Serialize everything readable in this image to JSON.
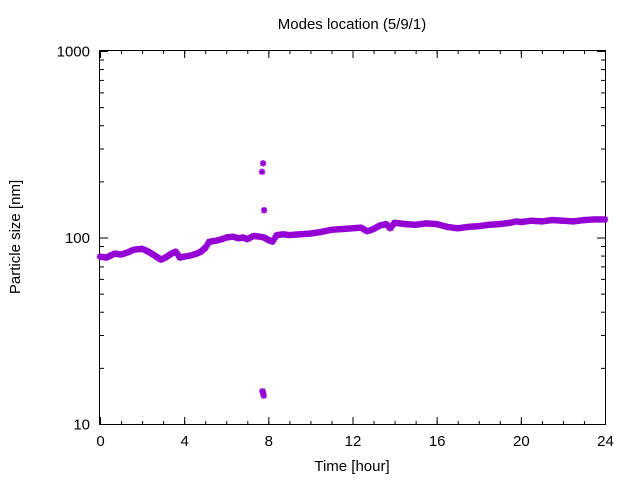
{
  "chart_data": {
    "type": "scatter",
    "title": "Modes location (5/9/1)",
    "xlabel": "Time [hour]",
    "ylabel": "Particle size [nm]",
    "xlim": [
      0,
      24
    ],
    "ylim": [
      10,
      1000
    ],
    "yscale": "log",
    "x_ticks": [
      0,
      4,
      8,
      12,
      16,
      20,
      24
    ],
    "x_tick_labels": [
      "0",
      "4",
      "8",
      "12",
      "16",
      "20",
      "24"
    ],
    "y_ticks": [
      10,
      100,
      1000
    ],
    "y_tick_labels": [
      "10",
      "100",
      "1000"
    ],
    "grid": false,
    "legend": "none",
    "marker_color": "#9400d3",
    "marker": "star",
    "trend_series": {
      "x": [
        0,
        0.3,
        0.5,
        0.7,
        1.0,
        1.3,
        1.6,
        2.0,
        2.3,
        2.6,
        2.9,
        3.1,
        3.4,
        3.6,
        3.8,
        4.0,
        4.3,
        4.6,
        4.8,
        5.0,
        5.2,
        5.5,
        5.8,
        6.0,
        6.3,
        6.6,
        6.8,
        7.0,
        7.3,
        7.6,
        7.8,
        8.0,
        8.2,
        8.4,
        8.7,
        9.0,
        9.5,
        10.0,
        10.5,
        11.0,
        11.5,
        12.0,
        12.4,
        12.7,
        13.0,
        13.3,
        13.6,
        13.8,
        14.0,
        14.5,
        15.0,
        15.5,
        16.0,
        16.5,
        17.0,
        17.5,
        18.0,
        18.5,
        19.0,
        19.5,
        19.8,
        20.0,
        20.5,
        21.0,
        21.5,
        22.0,
        22.5,
        23.0,
        23.5,
        24.0
      ],
      "y": [
        79,
        78,
        80,
        82,
        81,
        83,
        86,
        87,
        84,
        80,
        76,
        78,
        82,
        84,
        78,
        79,
        80,
        82,
        84,
        88,
        95,
        96,
        98,
        100,
        101,
        99,
        100,
        98,
        102,
        101,
        100,
        97,
        95,
        103,
        104,
        103,
        104,
        105,
        107,
        110,
        111,
        112,
        113,
        108,
        111,
        116,
        118,
        112,
        120,
        118,
        117,
        119,
        118,
        114,
        112,
        114,
        115,
        117,
        118,
        120,
        122,
        121,
        123,
        122,
        124,
        123,
        122,
        124,
        125,
        125
      ]
    },
    "outliers": {
      "x": [
        7.7,
        7.75,
        7.8,
        7.72,
        7.78,
        7.74
      ],
      "y": [
        225,
        250,
        140,
        15,
        14.2,
        14.8
      ]
    }
  }
}
